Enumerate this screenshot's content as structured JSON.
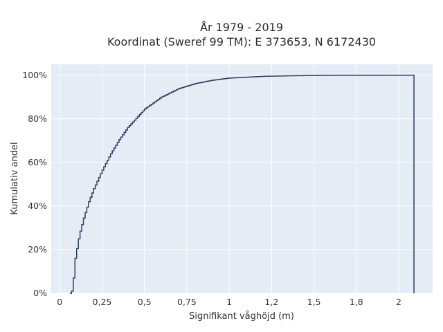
{
  "chart_data": {
    "type": "line",
    "line_shape": "step-ecdf",
    "title": "År 1979 - 2019",
    "subtitle": "Koordinat (Sweref 99 TM): E 373653, N 6172430",
    "xlabel": "Signifikant våghöjd (m)",
    "ylabel": "Kumulativ andel",
    "xlim": [
      -0.05,
      2.2
    ],
    "ylim": [
      0,
      1.05
    ],
    "x_ticks": [
      0,
      0.25,
      0.5,
      0.75,
      1,
      1.25,
      1.5,
      1.75,
      2
    ],
    "x_tick_labels": [
      "0",
      "0,25",
      "0,5",
      "0,75",
      "1",
      "1,2",
      "1,5",
      "1,8",
      "2"
    ],
    "y_ticks": [
      0,
      0.2,
      0.4,
      0.6,
      0.8,
      1.0
    ],
    "y_tick_labels": [
      "0%",
      "20%",
      "40%",
      "60%",
      "80%",
      "100%"
    ],
    "grid": true,
    "legend": false,
    "colors": {
      "line": "#2a3f5f",
      "plot_bg": "#e5ecf6",
      "grid": "#ffffff"
    },
    "x": [
      0.06,
      0.07,
      0.08,
      0.09,
      0.1,
      0.11,
      0.12,
      0.13,
      0.14,
      0.15,
      0.17,
      0.2,
      0.25,
      0.3,
      0.35,
      0.4,
      0.5,
      0.6,
      0.7,
      0.8,
      0.9,
      1.0,
      1.2,
      1.4,
      1.6,
      2.0,
      2.09
    ],
    "y": [
      0.0,
      0.01,
      0.07,
      0.16,
      0.205,
      0.25,
      0.285,
      0.315,
      0.345,
      0.37,
      0.42,
      0.48,
      0.565,
      0.64,
      0.705,
      0.76,
      0.845,
      0.9,
      0.938,
      0.962,
      0.977,
      0.987,
      0.995,
      0.998,
      0.9995,
      1.0,
      1.0
    ]
  }
}
